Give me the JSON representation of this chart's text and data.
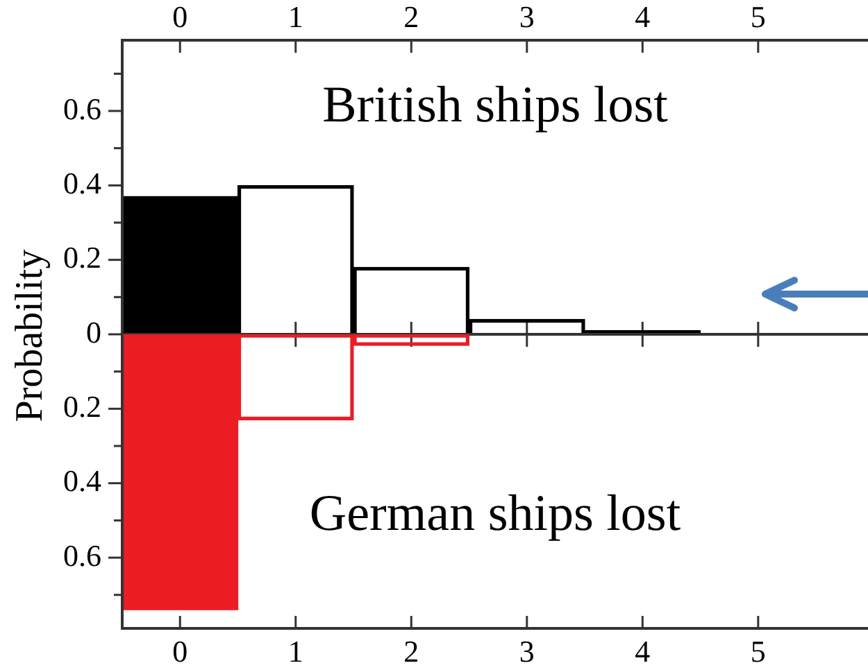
{
  "chart_data": [
    {
      "type": "bar",
      "ylabel": "Probability",
      "x": [
        0,
        1,
        2,
        3,
        4,
        5
      ],
      "xlim": [
        -0.5,
        5.95
      ],
      "xticks": [
        0,
        1,
        2,
        3,
        4,
        5
      ],
      "ylim": [
        0,
        0.79
      ],
      "yticks": [
        0,
        {
          "value": 0.1,
          "label": null
        },
        0.2,
        {
          "value": 0.3,
          "label": null
        },
        0.4,
        {
          "value": 0.5,
          "label": null
        },
        0.6,
        {
          "value": 0.7,
          "label": null
        }
      ],
      "series": [
        {
          "name": "British ships lost",
          "color": "#000000",
          "colors": [
            "#000000",
            null,
            null,
            null,
            null,
            null
          ],
          "values": [
            0.37,
            0.4,
            0.18,
            0.04,
            0.01,
            0
          ]
        }
      ],
      "legend": false,
      "grid": false
    },
    {
      "type": "bar",
      "x": [
        0,
        1,
        2,
        3,
        4,
        5
      ],
      "xlim": [
        -0.5,
        5.95
      ],
      "xticks": [
        0,
        1,
        2,
        3,
        4,
        5
      ],
      "ylim": [
        0.79,
        0
      ],
      "yticks": [
        {
          "value": 0.1,
          "label": null
        },
        0.2,
        {
          "value": 0.3,
          "label": null
        },
        0.4,
        {
          "value": 0.5,
          "label": null
        },
        0.6,
        {
          "value": 0.7,
          "label": null
        }
      ],
      "series": [
        {
          "name": "German ships lost",
          "color": "#ec1c24",
          "colors": [
            "#ec1c24",
            null,
            null,
            null,
            null,
            null
          ],
          "values": [
            0.74,
            0.23,
            0.03,
            0,
            0,
            0
          ]
        }
      ],
      "legend": false,
      "grid": false
    }
  ]
}
